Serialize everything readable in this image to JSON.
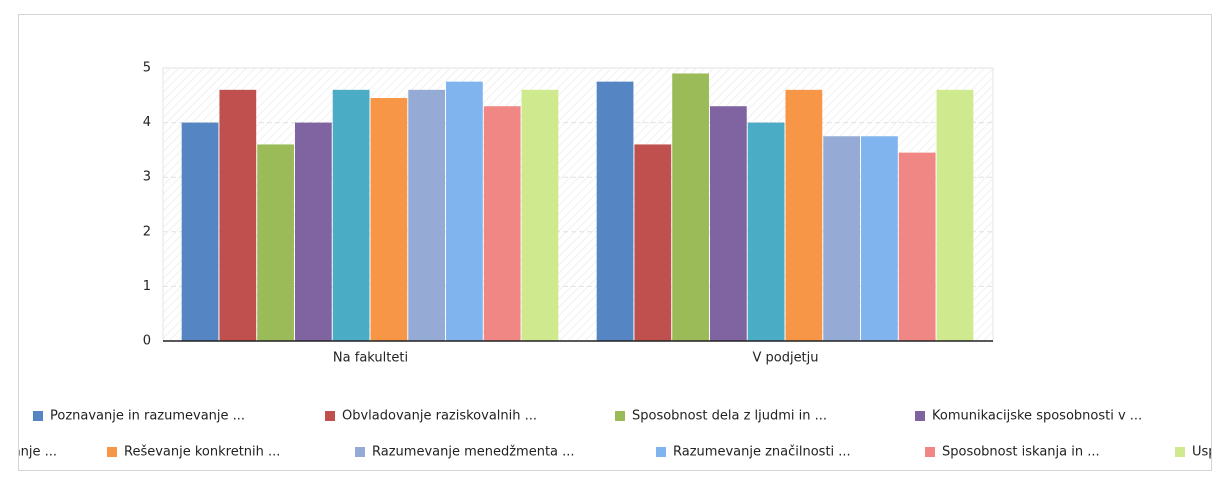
{
  "chart_data": {
    "type": "bar",
    "categories": [
      "Na fakulteti",
      "V podjetju"
    ],
    "series": [
      {
        "name": "Poznavanje in razumevanje ...",
        "color": "#5585c2",
        "values": [
          4.0,
          4.75
        ]
      },
      {
        "name": "Obvladovanje raziskovalnih ...",
        "color": "#c0504d",
        "values": [
          4.6,
          3.6
        ]
      },
      {
        "name": "Sposobnost dela z ljudmi in ...",
        "color": "#9bbb59",
        "values": [
          3.6,
          4.9
        ]
      },
      {
        "name": "Komunikacijske sposobnosti v ...",
        "color": "#8064a2",
        "values": [
          4.0,
          4.3
        ]
      },
      {
        "name": "vanje ...",
        "color": "#4bacc6",
        "values": [
          4.6,
          4.0
        ]
      },
      {
        "name": "Reševanje konkretnih ...",
        "color": "#f79646",
        "values": [
          4.45,
          4.6
        ]
      },
      {
        "name": "Razumevanje menedžmenta ...",
        "color": "#95abd5",
        "values": [
          4.6,
          3.75
        ]
      },
      {
        "name": "Razumevanje značilnosti ...",
        "color": "#80b4ee",
        "values": [
          4.75,
          3.75
        ]
      },
      {
        "name": "Sposobnost iskanja in ...",
        "color": "#f08784",
        "values": [
          4.3,
          3.45
        ]
      },
      {
        "name": "Usp",
        "color": "#cfea8e",
        "values": [
          4.6,
          4.6
        ]
      }
    ],
    "ylim": [
      0,
      5
    ],
    "yticks": [
      0,
      1,
      2,
      3,
      4,
      5
    ],
    "grid": true
  }
}
